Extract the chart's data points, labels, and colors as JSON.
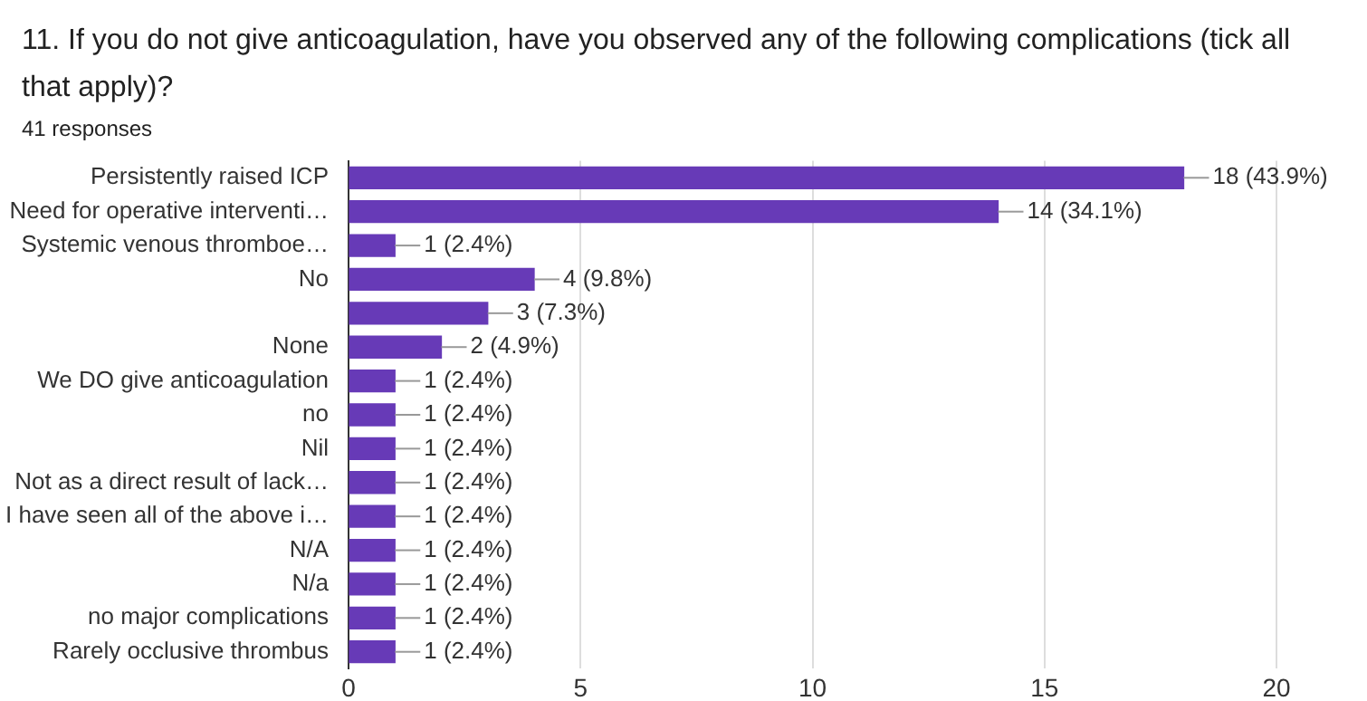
{
  "chart_data": {
    "type": "bar",
    "orientation": "horizontal",
    "title": "11. If you do not give anticoagulation, have you observed any of the following complications (tick all that apply)?",
    "subtitle": "41 responses",
    "categories": [
      "Persistently raised ICP",
      "Need for operative interventi…",
      "Systemic venous thromboe…",
      "No",
      null,
      "None",
      "We DO give anticoagulation",
      "no",
      "Nil",
      "Not as a direct result of lack…",
      "I have seen all of the above i…",
      "N/A",
      "N/a",
      "no major complications",
      "Rarely occlusive thrombus"
    ],
    "values": [
      18,
      14,
      1,
      4,
      3,
      2,
      1,
      1,
      1,
      1,
      1,
      1,
      1,
      1,
      1
    ],
    "value_labels": [
      "18 (43.9%)",
      "14 (34.1%)",
      "1 (2.4%)",
      "4 (9.8%)",
      "3 (7.3%)",
      "2 (4.9%)",
      "1 (2.4%)",
      "1 (2.4%)",
      "1 (2.4%)",
      "1 (2.4%)",
      "1 (2.4%)",
      "1 (2.4%)",
      "1 (2.4%)",
      "1 (2.4%)",
      "1 (2.4%)"
    ],
    "color": "#673ab7",
    "xlim": [
      0,
      20
    ],
    "xticks": [
      0,
      5,
      10,
      15,
      20
    ],
    "grid": "x"
  }
}
